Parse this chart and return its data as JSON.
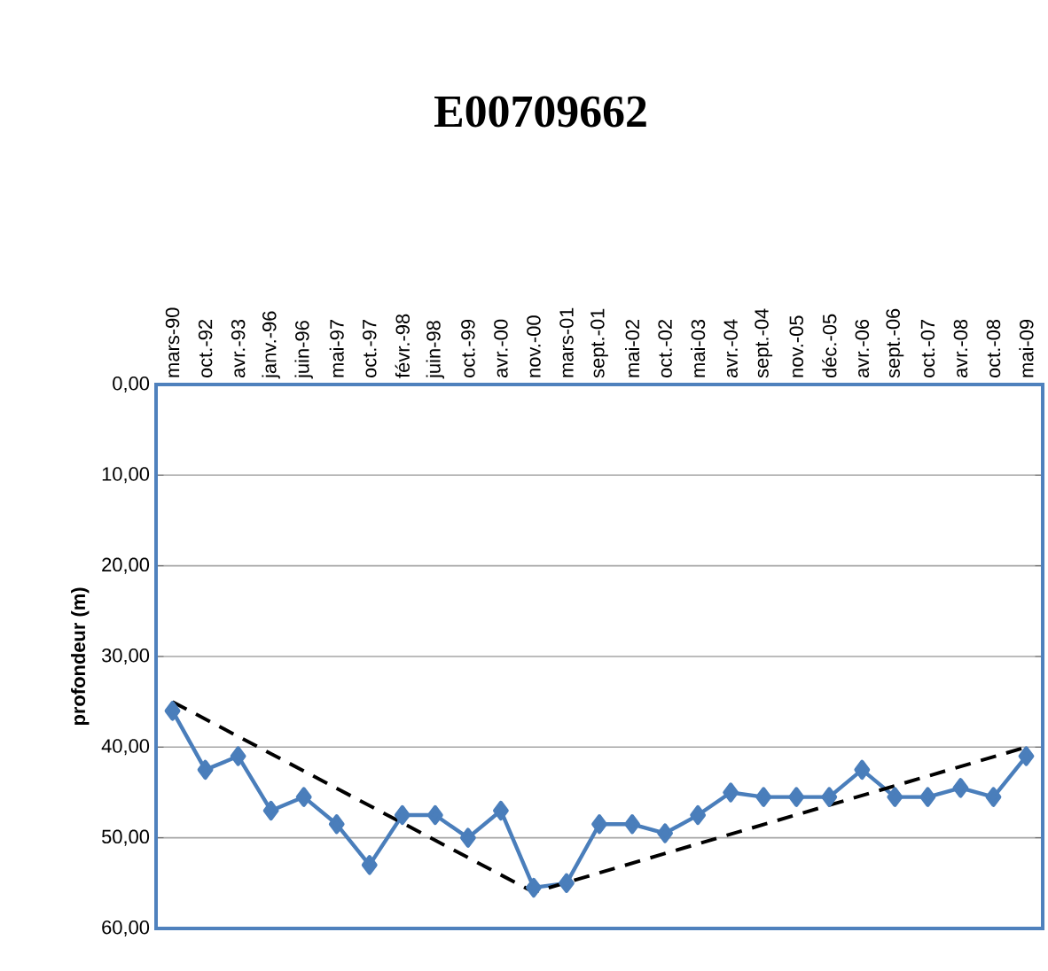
{
  "chart_data": {
    "type": "line",
    "title": "E00709662",
    "ylabel": "profondeur (m)",
    "categories": [
      "mars-90",
      "oct.-92",
      "avr.-93",
      "janv.-96",
      "juin-96",
      "mai-97",
      "oct.-97",
      "févr.-98",
      "juin-98",
      "oct.-99",
      "avr.-00",
      "nov.-00",
      "mars-01",
      "sept.-01",
      "mai-02",
      "oct.-02",
      "mai-03",
      "avr.-04",
      "sept.-04",
      "nov.-05",
      "déc.-05",
      "avr.-06",
      "sept.-06",
      "oct.-07",
      "avr.-08",
      "oct.-08",
      "mai-09"
    ],
    "series": [
      {
        "color": "#4a7ebb",
        "marker": "diamond",
        "line_style": "solid",
        "values": [
          36,
          42.5,
          41,
          47,
          45.5,
          48.5,
          53,
          47.5,
          47.5,
          50,
          47,
          55.5,
          55,
          48.5,
          48.5,
          49.5,
          47.5,
          45,
          45.5,
          45.5,
          45.5,
          42.5,
          45.5,
          45.5,
          44.5,
          45.5,
          41
        ]
      },
      {
        "type": "line",
        "color": "#000000",
        "marker": "none",
        "line_style": "dashed",
        "x": [
          "mars-90",
          "nov.-00",
          "mai-09"
        ],
        "values": [
          35,
          56,
          40
        ]
      }
    ],
    "ylim": [
      60,
      0
    ],
    "yticks": [
      {
        "value": 0,
        "label": "0,00"
      },
      {
        "value": 10,
        "label": "10,00"
      },
      {
        "value": 20,
        "label": "20,00"
      },
      {
        "value": 30,
        "label": "30,00"
      },
      {
        "value": 40,
        "label": "40,00"
      },
      {
        "value": 50,
        "label": "50,00"
      },
      {
        "value": 60,
        "label": "60,00"
      }
    ],
    "grid": "y"
  }
}
